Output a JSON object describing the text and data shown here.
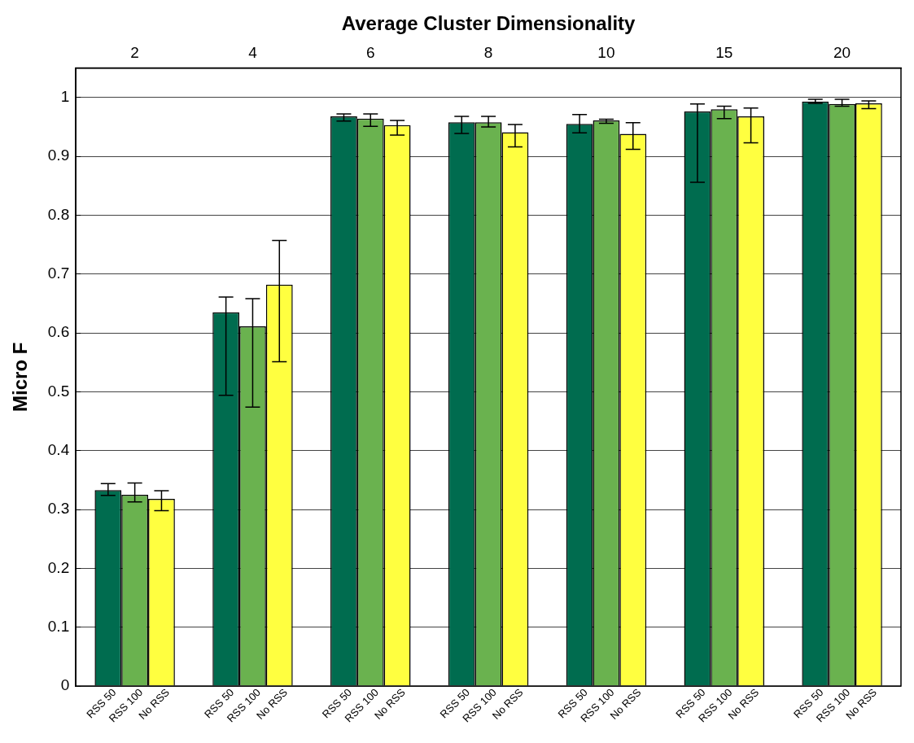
{
  "chart_data": {
    "type": "bar",
    "xlabel": "Average Cluster Dimensionality",
    "ylabel": "Micro F",
    "categories": [
      "2",
      "4",
      "6",
      "8",
      "10",
      "15",
      "20"
    ],
    "series": [
      {
        "name": "RSS 50",
        "color": "#006c4f",
        "values": [
          0.333,
          0.635,
          0.968,
          0.958,
          0.955,
          0.976,
          0.993
        ],
        "errors": [
          [
            0.324,
            0.344
          ],
          [
            0.494,
            0.661
          ],
          [
            0.96,
            0.972
          ],
          [
            0.939,
            0.968
          ],
          [
            0.94,
            0.971
          ],
          [
            0.856,
            0.989
          ],
          [
            0.99,
            0.997
          ]
        ]
      },
      {
        "name": "RSS 100",
        "color": "#6ab24f",
        "values": [
          0.325,
          0.611,
          0.964,
          0.958,
          0.961,
          0.98,
          0.989
        ],
        "errors": [
          [
            0.313,
            0.345
          ],
          [
            0.474,
            0.658
          ],
          [
            0.951,
            0.972
          ],
          [
            0.95,
            0.968
          ],
          [
            0.956,
            0.963
          ],
          [
            0.964,
            0.985
          ],
          [
            0.985,
            0.997
          ]
        ]
      },
      {
        "name": "No RSS",
        "color": "#ffff40",
        "values": [
          0.318,
          0.682,
          0.953,
          0.941,
          0.938,
          0.968,
          0.99
        ],
        "errors": [
          [
            0.298,
            0.332
          ],
          [
            0.551,
            0.757
          ],
          [
            0.936,
            0.961
          ],
          [
            0.916,
            0.954
          ],
          [
            0.912,
            0.957
          ],
          [
            0.923,
            0.982
          ],
          [
            0.981,
            0.994
          ]
        ]
      }
    ],
    "ylim": [
      0,
      1.05
    ],
    "yticks": [
      0,
      0.1,
      0.2,
      0.3,
      0.4,
      0.5,
      0.6,
      0.7,
      0.8,
      0.9,
      1
    ],
    "grid": "y",
    "legend": false
  }
}
